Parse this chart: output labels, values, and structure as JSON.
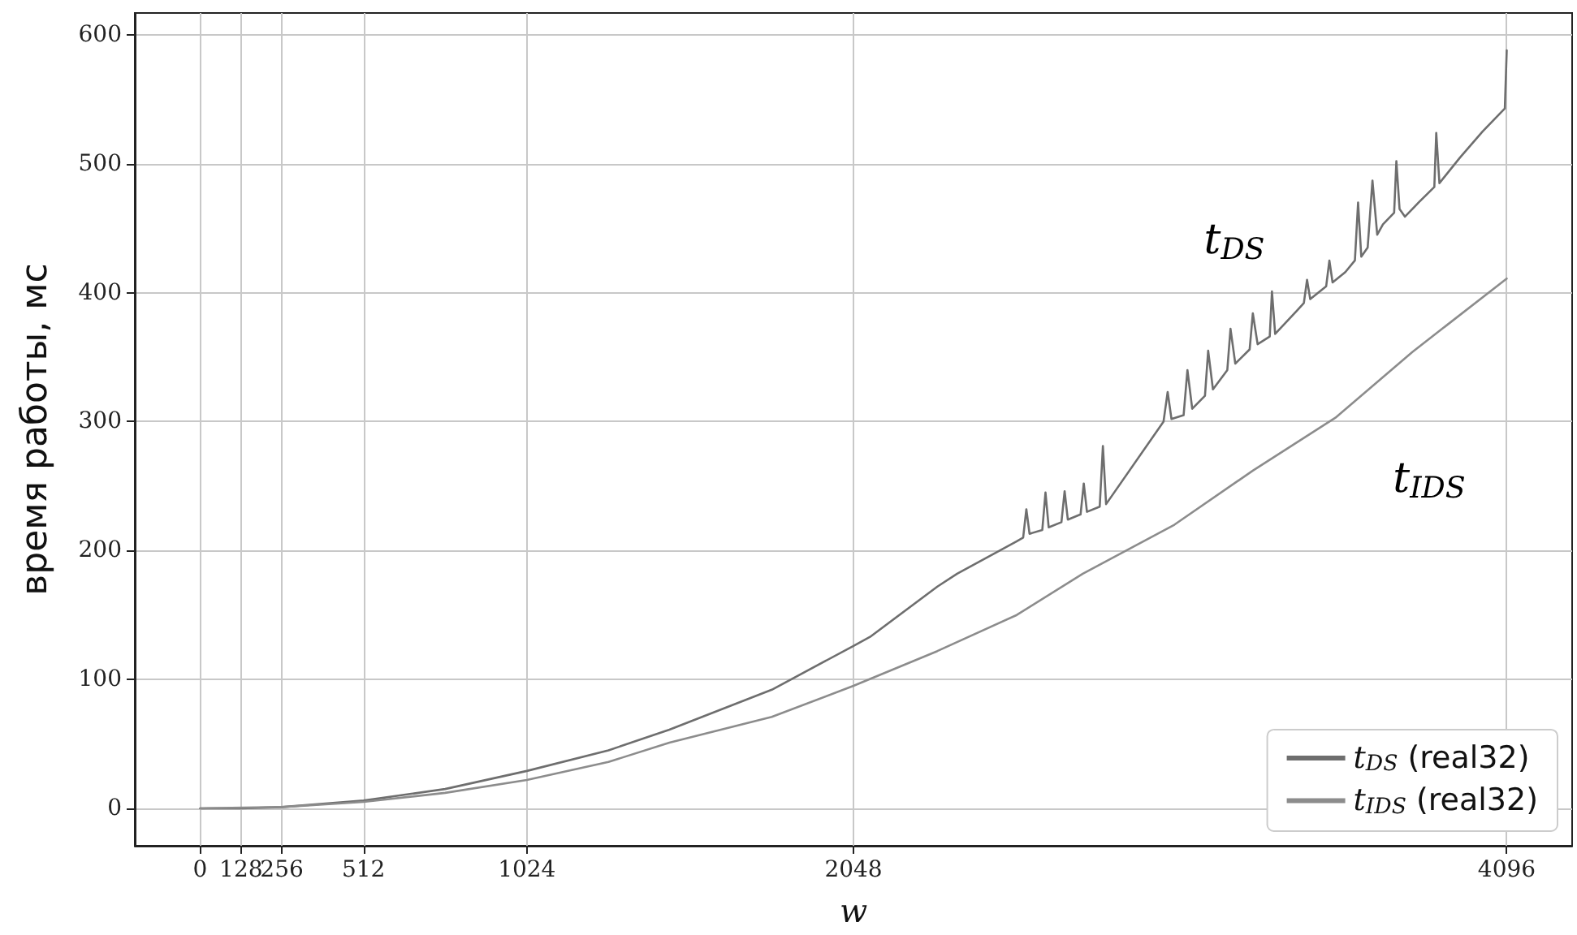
{
  "chart_data": {
    "type": "line",
    "xlabel": "w",
    "ylabel": "время работы, мс",
    "xlim": [
      -205,
      4301
    ],
    "xticks": [
      0,
      128,
      256,
      512,
      1024,
      2048,
      4096
    ],
    "ylim": [
      -29,
      617
    ],
    "yticks": [
      0,
      100,
      200,
      300,
      400,
      500,
      600
    ],
    "grid": true,
    "legend": "bottom right",
    "marker": "none",
    "line_style": "solid",
    "annotations": [
      "t$_{DS}$",
      "t$_{IDS}$"
    ],
    "series": [
      {
        "name": "t$_{DS}$ (real32)",
        "color": "#6e6e6e",
        "x": [
          0,
          128,
          256,
          512,
          768,
          1024,
          1280,
          1471,
          1792,
          2048,
          2100,
          2311,
          2373,
          2559,
          2580,
          2590,
          2600,
          2640,
          2650,
          2660,
          2700,
          2710,
          2720,
          2760,
          2770,
          2780,
          2820,
          2830,
          2840,
          3020,
          3033,
          3045,
          3083,
          3095,
          3110,
          3150,
          3160,
          3175,
          3220,
          3230,
          3245,
          3290,
          3300,
          3315,
          3353,
          3360,
          3370,
          3438,
          3460,
          3470,
          3480,
          3530,
          3540,
          3550,
          3590,
          3620,
          3630,
          3640,
          3660,
          3675,
          3690,
          3708,
          3743,
          3750,
          3760,
          3777,
          3820,
          3869,
          3875,
          3885,
          3950,
          4020,
          4090,
          4096
        ],
        "values": [
          0,
          0,
          1,
          6,
          15,
          29,
          45,
          61,
          92,
          126,
          133,
          172,
          182,
          207,
          210,
          232,
          213,
          216,
          245,
          218,
          222,
          246,
          224,
          228,
          252,
          230,
          234,
          281,
          236,
          300,
          323,
          302,
          305,
          340,
          310,
          320,
          355,
          325,
          340,
          372,
          345,
          356,
          384,
          360,
          366,
          401,
          368,
          386,
          392,
          410,
          395,
          405,
          425,
          408,
          416,
          425,
          470,
          428,
          435,
          487,
          445,
          453,
          462,
          502,
          465,
          459,
          470,
          482,
          524,
          485,
          505,
          525,
          543,
          588
        ]
      },
      {
        "name": "t$_{IDS}$ (real32)",
        "color": "#8c8c8c",
        "x": [
          0,
          256,
          512,
          768,
          1024,
          1280,
          1471,
          1792,
          2048,
          2311,
          2560,
          2767,
          3054,
          3300,
          3559,
          3800,
          4096
        ],
        "values": [
          0,
          1,
          5,
          12,
          22,
          36,
          51,
          71,
          95,
          122,
          150,
          182,
          220,
          262,
          303,
          354,
          411
        ]
      }
    ]
  }
}
